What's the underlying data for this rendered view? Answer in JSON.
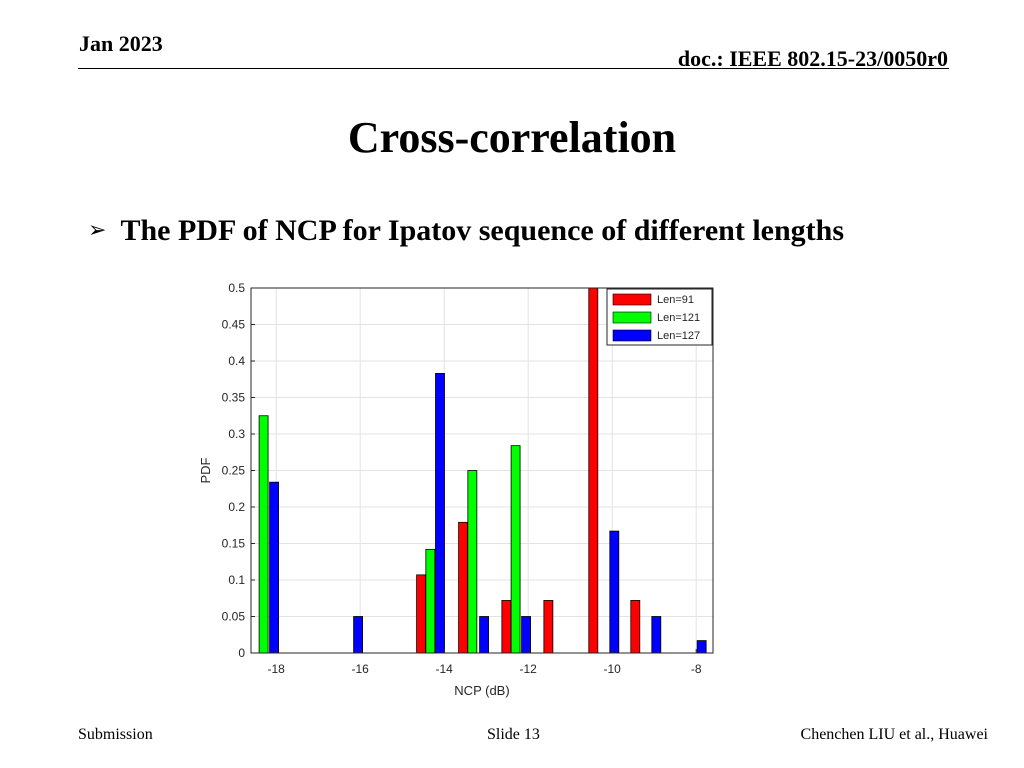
{
  "header": {
    "date": "Jan 2023",
    "doc": "doc.: IEEE 802.15-23/0050r0"
  },
  "title": "Cross-correlation",
  "bullet": {
    "marker": "➢",
    "text": "The PDF of NCP for Ipatov sequence of  different lengths"
  },
  "footer": {
    "left": "Submission",
    "center": "Slide 13",
    "right": "Chenchen LIU et al., Huawei"
  },
  "colors": {
    "len91": "#ff0000",
    "len121": "#00ff00",
    "len127": "#0000ff"
  },
  "chart_data": {
    "type": "bar",
    "xlabel": "NCP (dB)",
    "ylabel": "PDF",
    "xlim": [
      -18.6,
      -7.6
    ],
    "ylim": [
      0,
      0.5
    ],
    "xticks": [
      -18,
      -16,
      -14,
      -12,
      -10,
      -8
    ],
    "yticks": [
      0,
      0.05,
      0.1,
      0.15,
      0.2,
      0.25,
      0.3,
      0.35,
      0.4,
      0.45,
      0.5
    ],
    "grid": true,
    "legend_position": "top-right",
    "series": [
      {
        "name": "Len=91",
        "color": "#ff0000",
        "points": [
          {
            "x": -14.55,
            "y": 0.107
          },
          {
            "x": -13.55,
            "y": 0.179
          },
          {
            "x": -12.52,
            "y": 0.072
          },
          {
            "x": -11.52,
            "y": 0.072
          },
          {
            "x": -10.45,
            "y": 0.5
          },
          {
            "x": -9.45,
            "y": 0.072
          }
        ]
      },
      {
        "name": "Len=121",
        "color": "#00ff00",
        "points": [
          {
            "x": -18.3,
            "y": 0.325
          },
          {
            "x": -14.33,
            "y": 0.142
          },
          {
            "x": -13.33,
            "y": 0.25
          },
          {
            "x": -12.3,
            "y": 0.284
          }
        ]
      },
      {
        "name": "Len=127",
        "color": "#0000ff",
        "points": [
          {
            "x": -18.05,
            "y": 0.234
          },
          {
            "x": -16.05,
            "y": 0.05
          },
          {
            "x": -14.1,
            "y": 0.383
          },
          {
            "x": -13.05,
            "y": 0.05
          },
          {
            "x": -12.05,
            "y": 0.05
          },
          {
            "x": -9.95,
            "y": 0.167
          },
          {
            "x": -8.95,
            "y": 0.05
          },
          {
            "x": -7.87,
            "y": 0.017
          }
        ]
      }
    ]
  }
}
